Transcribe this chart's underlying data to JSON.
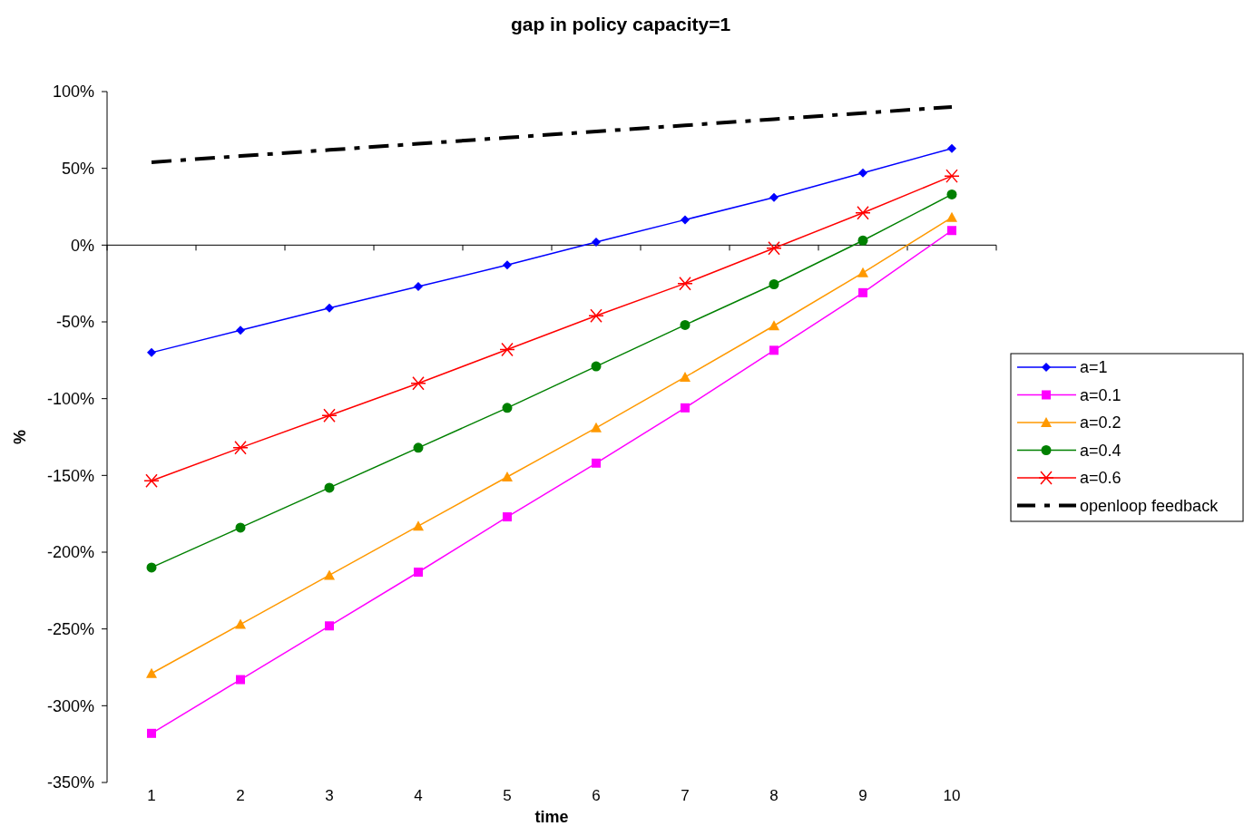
{
  "chart_data": {
    "type": "line",
    "title": "gap in policy capacity=1",
    "xlabel": "time",
    "ylabel": "%",
    "categories": [
      "1",
      "2",
      "3",
      "4",
      "5",
      "6",
      "7",
      "8",
      "9",
      "10"
    ],
    "ylim": [
      -350,
      100
    ],
    "yticks": [
      {
        "value": 100,
        "label": "100%"
      },
      {
        "value": 50,
        "label": "50%"
      },
      {
        "value": 0,
        "label": "0%"
      },
      {
        "value": -50,
        "label": "-50%"
      },
      {
        "value": -100,
        "label": "-100%"
      },
      {
        "value": -150,
        "label": "-150%"
      },
      {
        "value": -200,
        "label": "-200%"
      },
      {
        "value": -250,
        "label": "-250%"
      },
      {
        "value": -300,
        "label": "-300%"
      },
      {
        "value": -350,
        "label": "-350%"
      }
    ],
    "legend": "right",
    "series": [
      {
        "name": "a=1",
        "color": "#0000ff",
        "marker": "diamond",
        "values": [
          -70,
          -55.5,
          -41,
          -27,
          -13,
          2,
          16.5,
          31,
          47,
          63
        ]
      },
      {
        "name": "a=0.1",
        "color": "#ff00ff",
        "marker": "square",
        "values": [
          -318,
          -283,
          -248,
          -213,
          -177,
          -142,
          -106,
          -68.5,
          -31,
          9.5
        ]
      },
      {
        "name": "a=0.2",
        "color": "#ff9900",
        "marker": "triangle",
        "values": [
          -279,
          -247,
          -215,
          -183,
          -151,
          -119,
          -86,
          -52.5,
          -18,
          18
        ]
      },
      {
        "name": "a=0.4",
        "color": "#008000",
        "marker": "circle",
        "values": [
          -210,
          -184,
          -158,
          -132,
          -106,
          -79,
          -52,
          -25.5,
          3,
          33
        ]
      },
      {
        "name": "a=0.6",
        "color": "#ff0000",
        "marker": "cross",
        "values": [
          -153.5,
          -132,
          -111,
          -90,
          -68,
          -46,
          -25,
          -2,
          21,
          45
        ]
      },
      {
        "name": "openloop feedback",
        "color": "#000000",
        "marker": "none",
        "line_style": "dashed",
        "values": [
          54,
          58,
          62,
          66,
          70,
          74,
          78,
          82,
          86,
          90
        ]
      }
    ]
  }
}
